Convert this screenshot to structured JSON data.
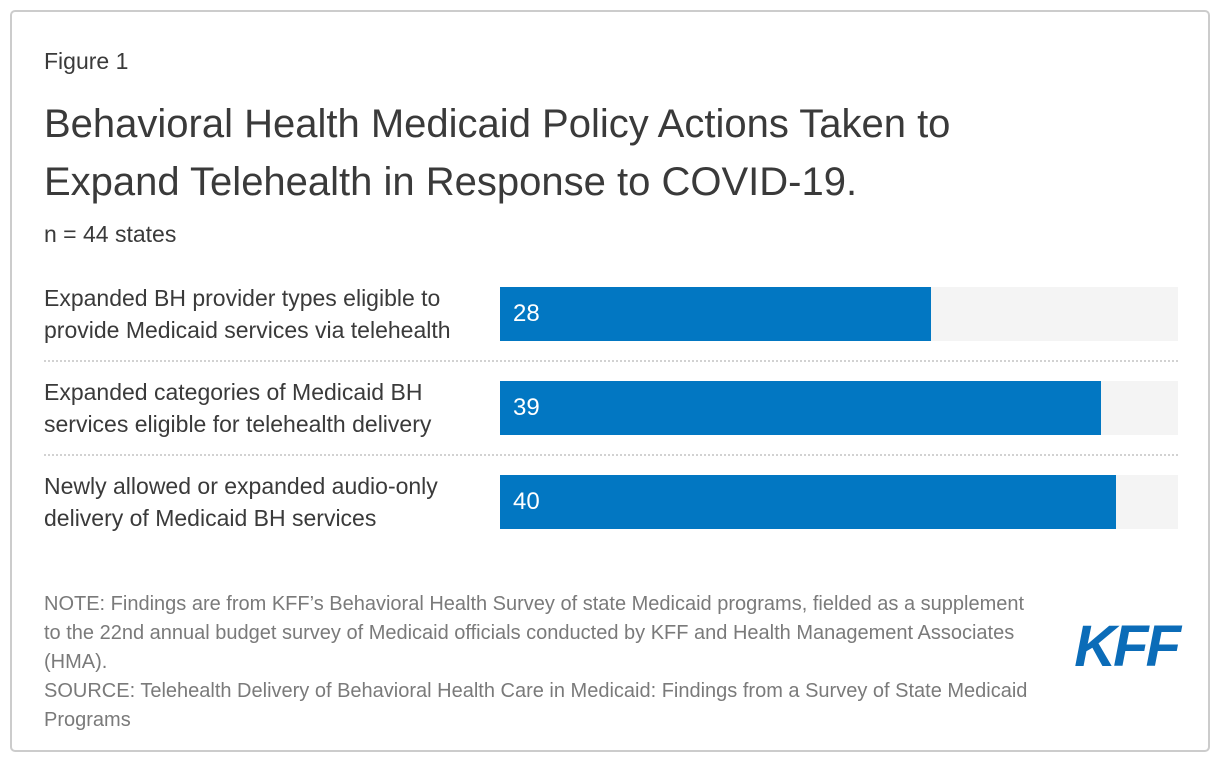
{
  "figure_label": "Figure 1",
  "title_lines": [
    "Behavioral Health Medicaid Policy Actions Taken to",
    "Expand Telehealth in Response to COVID-19."
  ],
  "subtitle": "n = 44 states",
  "chart_data": {
    "type": "bar",
    "orientation": "horizontal",
    "title": "Behavioral Health Medicaid Policy Actions Taken to Expand Telehealth in Response to COVID-19.",
    "subtitle": "n = 44 states",
    "categories": [
      "Expanded BH provider types eligible to provide Medicaid services via telehealth",
      "Expanded categories of Medicaid BH services eligible for telehealth delivery",
      "Newly allowed or expanded audio-only delivery of Medicaid BH services"
    ],
    "values": [
      28,
      39,
      40
    ],
    "xlim": [
      0,
      44
    ],
    "value_labels": [
      "28",
      "39",
      "40"
    ],
    "value_label_position": "inside-left",
    "bar_color": "#0277c2",
    "track_color": "#f4f4f4",
    "grid": false,
    "legend": false
  },
  "notes": {
    "note": "NOTE: Findings are from KFF’s Behavioral Health Survey of state Medicaid programs, fielded as a supplement to the 22nd annual budget survey of Medicaid officials conducted by KFF and Health Management Associates (HMA).",
    "source": "SOURCE: Telehealth Delivery of Behavioral Health Care in Medicaid: Findings from a Survey of State Medicaid Programs"
  },
  "logo": {
    "text": "KFF",
    "color": "#0b6cb8"
  }
}
